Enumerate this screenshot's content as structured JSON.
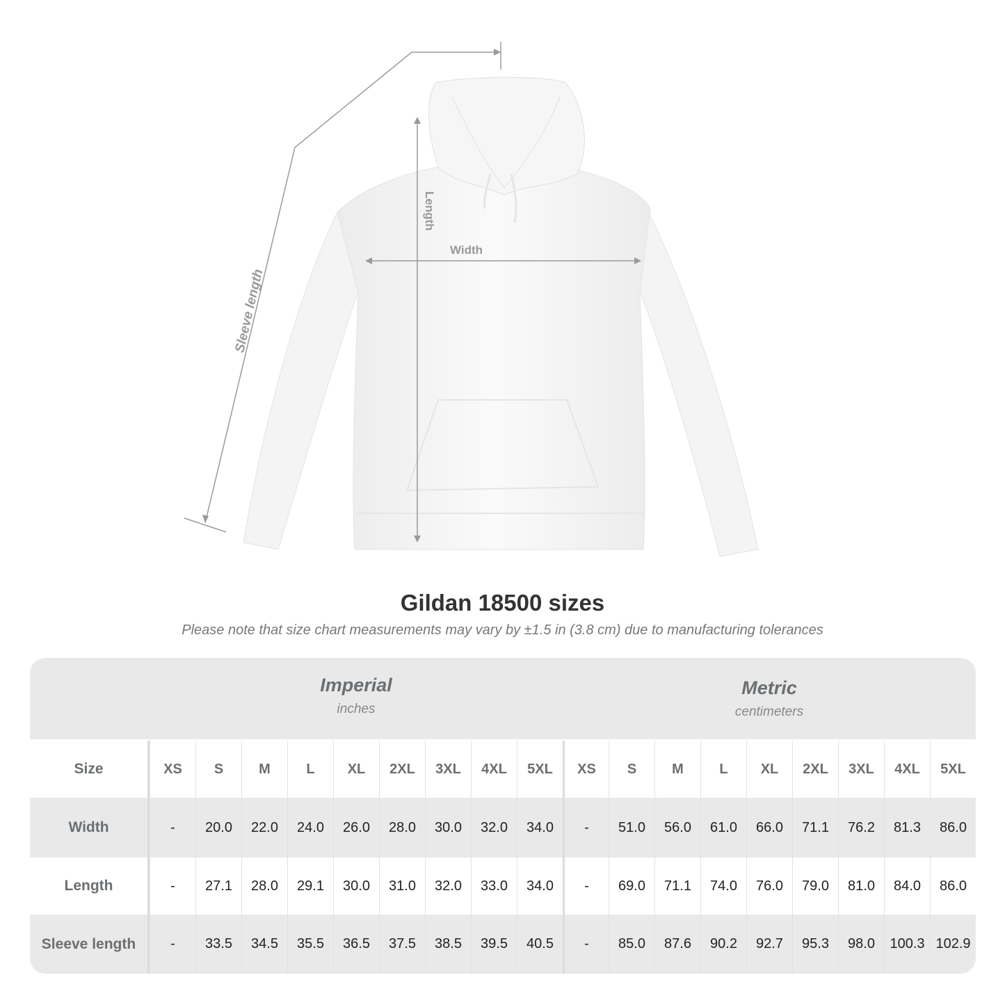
{
  "diagram": {
    "labels": {
      "sleeve": "Sleeve length",
      "length": "Length",
      "width": "Width"
    },
    "garment_color": "#ffffff",
    "line_color": "#9a9a9a"
  },
  "title": "Gildan 18500 sizes",
  "subtitle": "Please note that size chart measurements may vary by ±1.5 in (3.8 cm) due to manufacturing tolerances",
  "table": {
    "imperial": {
      "name": "Imperial",
      "unit": "inches"
    },
    "metric": {
      "name": "Metric",
      "unit": "centimeters"
    },
    "size_label": "Size",
    "sizes": [
      "XS",
      "S",
      "M",
      "L",
      "XL",
      "2XL",
      "3XL",
      "4XL",
      "5XL"
    ],
    "rows": [
      {
        "label": "Width",
        "imperial": [
          "-",
          "20.0",
          "22.0",
          "24.0",
          "26.0",
          "28.0",
          "30.0",
          "32.0",
          "34.0"
        ],
        "metric": [
          "-",
          "51.0",
          "56.0",
          "61.0",
          "66.0",
          "71.1",
          "76.2",
          "81.3",
          "86.0"
        ]
      },
      {
        "label": "Length",
        "imperial": [
          "-",
          "27.1",
          "28.0",
          "29.1",
          "30.0",
          "31.0",
          "32.0",
          "33.0",
          "34.0"
        ],
        "metric": [
          "-",
          "69.0",
          "71.1",
          "74.0",
          "76.0",
          "79.0",
          "81.0",
          "84.0",
          "86.0"
        ]
      },
      {
        "label": "Sleeve length",
        "imperial": [
          "-",
          "33.5",
          "34.5",
          "35.5",
          "36.5",
          "37.5",
          "38.5",
          "39.5",
          "40.5"
        ],
        "metric": [
          "-",
          "85.0",
          "87.6",
          "90.2",
          "92.7",
          "95.3",
          "98.0",
          "100.3",
          "102.9"
        ]
      }
    ]
  }
}
